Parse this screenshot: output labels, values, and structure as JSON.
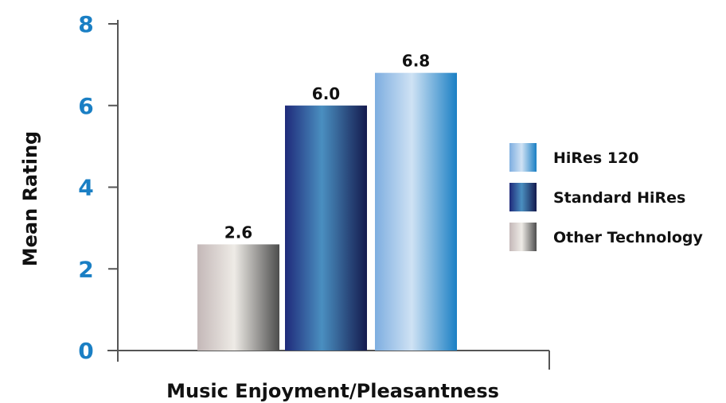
{
  "chart_data": {
    "type": "bar",
    "xlabel": "Music Enjoyment/Pleasantness",
    "ylabel": "Mean Rating",
    "ylim": [
      0,
      8
    ],
    "yticks": [
      "0",
      "2",
      "4",
      "6",
      "8"
    ],
    "legend_position": "right",
    "grid": false,
    "series": [
      {
        "name": "Other Technology",
        "value": 2.6,
        "label": "2.6",
        "colors": [
          "#c4b8b8",
          "#eeebe6",
          "#4d4d4d"
        ]
      },
      {
        "name": "Standard HiRes",
        "value": 6.0,
        "label": "6.0",
        "colors": [
          "#1f2a7a",
          "#4a8fc0",
          "#141a4e"
        ]
      },
      {
        "name": "HiRes 120",
        "value": 6.8,
        "label": "6.8",
        "colors": [
          "#7eaee0",
          "#cfe2f4",
          "#1a7fc4"
        ]
      }
    ],
    "legend": [
      "HiRes 120",
      "Standard HiRes",
      "Other Technology"
    ]
  }
}
